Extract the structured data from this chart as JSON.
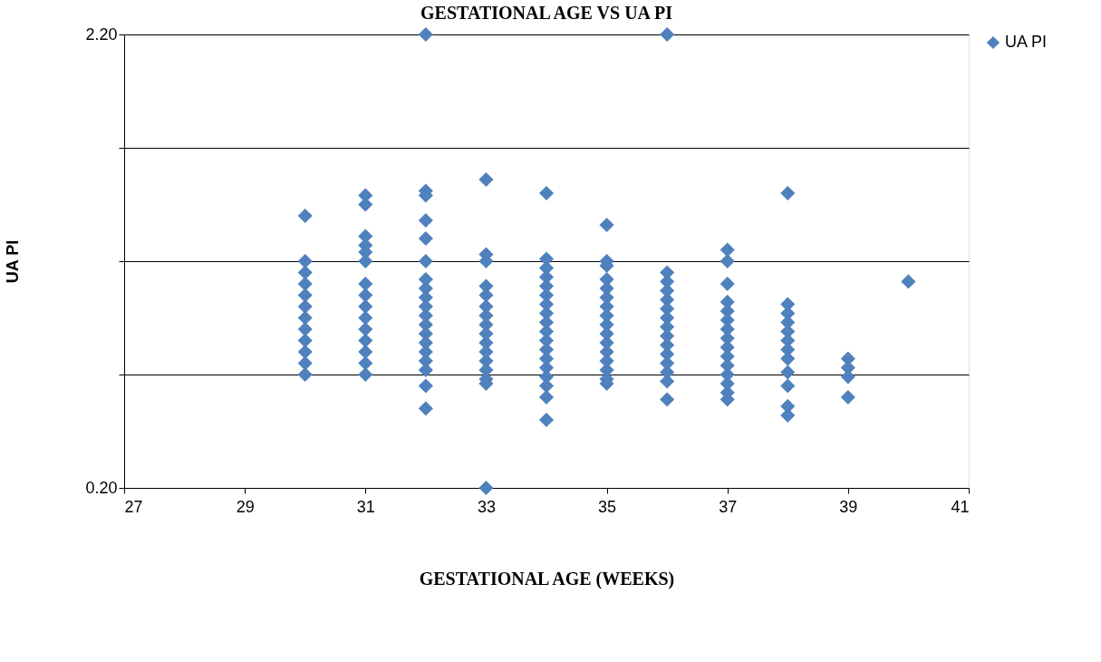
{
  "chart_data": {
    "type": "scatter",
    "title": "GESTATIONAL AGE VS UA PI",
    "xlabel": "GESTATIONAL AGE (WEEKS)",
    "ylabel": "UA PI",
    "xlim": [
      27,
      41
    ],
    "xticks": [
      27,
      29,
      31,
      33,
      35,
      37,
      39,
      41
    ],
    "ylim": [
      0.2,
      2.2
    ],
    "yticks": [
      {
        "value": 0.2,
        "label": "0.20"
      },
      {
        "value": 0.7,
        "label": null
      },
      {
        "value": 1.2,
        "label": null
      },
      {
        "value": 1.7,
        "label": null
      },
      {
        "value": 2.2,
        "label": "2.20"
      }
    ],
    "grid": "y",
    "legend": "right",
    "marker": "diamond",
    "series": [
      {
        "name": "UA PI",
        "color": "#4f81bd",
        "x": [
          30,
          30,
          30,
          30,
          30,
          30,
          30,
          30,
          30,
          30,
          30,
          30,
          31,
          31,
          31,
          31,
          31,
          31,
          31,
          31,
          31,
          31,
          31,
          31,
          31,
          31,
          31,
          32,
          32,
          32,
          32,
          32,
          32,
          32,
          32,
          32,
          32,
          32,
          32,
          32,
          32,
          32,
          32,
          32,
          32,
          32,
          33,
          33,
          33,
          33,
          33,
          33,
          33,
          33,
          33,
          33,
          33,
          33,
          33,
          33,
          33,
          33,
          34,
          34,
          34,
          34,
          34,
          34,
          34,
          34,
          34,
          34,
          34,
          34,
          34,
          34,
          34,
          34,
          34,
          34,
          35,
          35,
          35,
          35,
          35,
          35,
          35,
          35,
          35,
          35,
          35,
          35,
          35,
          35,
          35,
          35,
          36,
          36,
          36,
          36,
          36,
          36,
          36,
          36,
          36,
          36,
          36,
          36,
          36,
          36,
          36,
          37,
          37,
          37,
          37,
          37,
          37,
          37,
          37,
          37,
          37,
          37,
          37,
          37,
          37,
          37,
          38,
          38,
          38,
          38,
          38,
          38,
          38,
          38,
          38,
          38,
          38,
          38,
          39,
          39,
          39,
          39,
          40
        ],
        "values": [
          1.4,
          1.2,
          1.15,
          1.1,
          1.05,
          1.0,
          0.95,
          0.9,
          0.85,
          0.8,
          0.75,
          0.7,
          1.49,
          1.45,
          1.31,
          1.27,
          1.24,
          1.2,
          1.1,
          1.05,
          1.0,
          0.95,
          0.9,
          0.85,
          0.8,
          0.75,
          0.7,
          2.2,
          1.51,
          1.49,
          1.38,
          1.3,
          1.2,
          1.12,
          1.08,
          1.04,
          1.0,
          0.96,
          0.92,
          0.88,
          0.84,
          0.8,
          0.76,
          0.72,
          0.65,
          0.55,
          1.56,
          1.23,
          1.2,
          1.09,
          1.05,
          1.0,
          0.96,
          0.92,
          0.88,
          0.84,
          0.8,
          0.76,
          0.72,
          0.68,
          0.66,
          0.2,
          1.5,
          1.21,
          1.17,
          1.13,
          1.09,
          1.05,
          1.01,
          0.97,
          0.93,
          0.89,
          0.85,
          0.81,
          0.77,
          0.73,
          0.69,
          0.65,
          0.6,
          0.5,
          1.36,
          1.2,
          1.18,
          1.12,
          1.08,
          1.04,
          1.0,
          0.96,
          0.92,
          0.88,
          0.84,
          0.8,
          0.76,
          0.72,
          0.68,
          0.66,
          2.2,
          1.15,
          1.11,
          1.07,
          1.03,
          0.99,
          0.95,
          0.91,
          0.87,
          0.83,
          0.79,
          0.75,
          0.71,
          0.67,
          0.59,
          1.25,
          1.2,
          1.1,
          1.02,
          0.98,
          0.94,
          0.9,
          0.86,
          0.82,
          0.78,
          0.74,
          0.7,
          0.66,
          0.62,
          0.59,
          1.5,
          1.01,
          0.97,
          0.93,
          0.89,
          0.85,
          0.81,
          0.77,
          0.71,
          0.65,
          0.56,
          0.52,
          0.77,
          0.73,
          0.69,
          0.6,
          1.11
        ]
      }
    ]
  }
}
